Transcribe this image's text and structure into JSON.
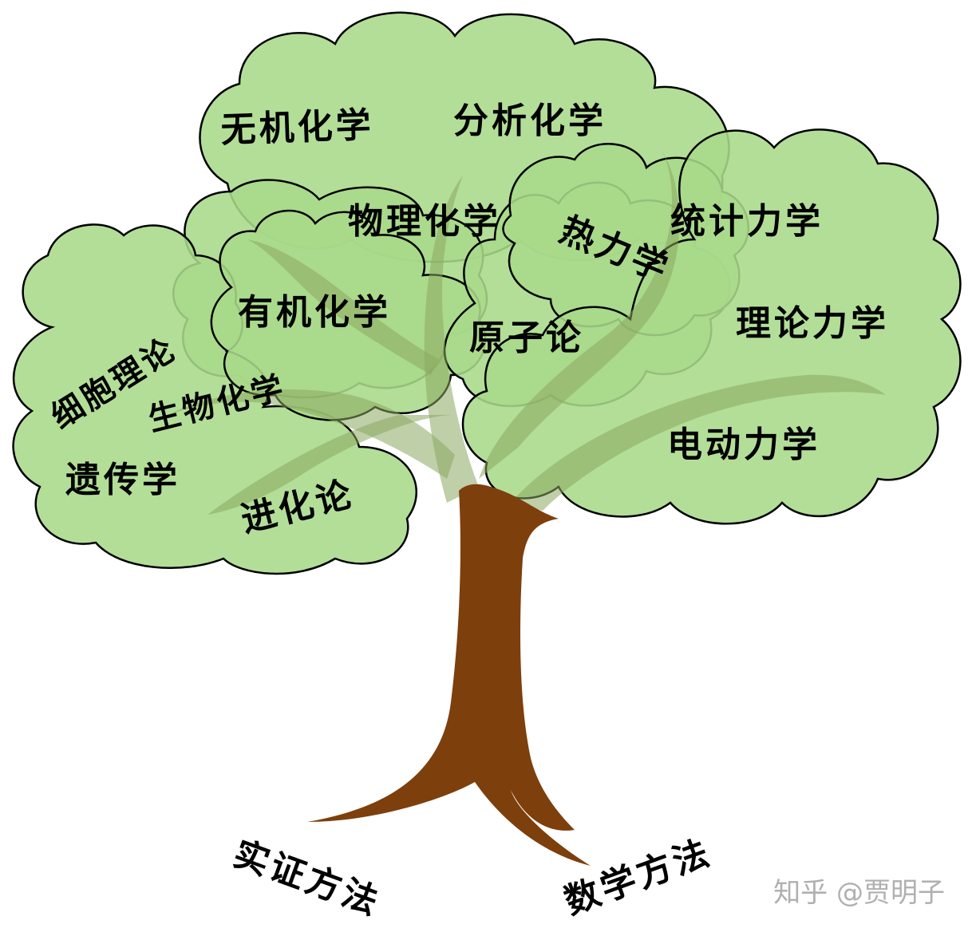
{
  "colors": {
    "canopy_fill": "#a9d98a",
    "canopy_overlap": "#9ccf7c",
    "canopy_stroke": "#000000",
    "branch": "#8aa861",
    "trunk": "#7d3f0c",
    "text": "#000000",
    "watermark": "#b0b0b0"
  },
  "branches": {
    "inorganic_chemistry": "无机化学",
    "analytical_chemistry": "分析化学",
    "physical_chemistry": "物理化学",
    "thermodynamics": "热力学",
    "statistical_mechanics": "统计力学",
    "organic_chemistry": "有机化学",
    "theoretical_mechanics": "理论力学",
    "cell_theory": "细胞理论",
    "atomic_theory": "原子论",
    "biochemistry": "生物化学",
    "electrodynamics": "电动力学",
    "genetics": "遗传学",
    "evolution": "进化论"
  },
  "roots": {
    "empirical_method": "实证方法",
    "mathematical_method": "数学方法"
  },
  "watermark": "知乎 @贾明子"
}
